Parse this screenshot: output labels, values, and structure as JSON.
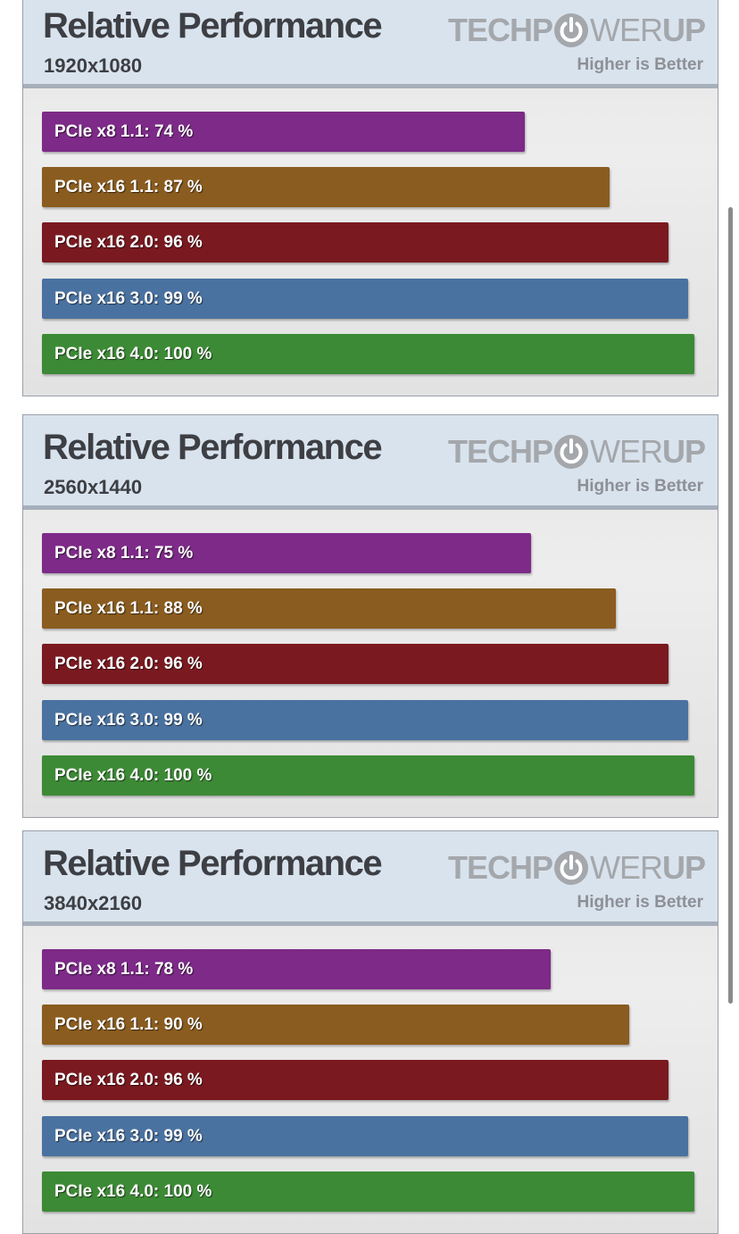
{
  "branding": {
    "logo_prefix": "TECHP",
    "logo_mid": "WER",
    "logo_suffix": "UP",
    "tagline": "Higher is Better"
  },
  "colors": {
    "pcie_x8_1_1": "#7d2a88",
    "pcie_x16_1_1": "#8a5c1f",
    "pcie_x16_2_0": "#7a1a20",
    "pcie_x16_3_0": "#4a72a0",
    "pcie_x16_4_0": "#3c8a35"
  },
  "chart_data": [
    {
      "type": "bar",
      "orientation": "horizontal",
      "title": "Relative Performance",
      "subtitle": "1920x1080",
      "unit": "%",
      "xlim": [
        0,
        100
      ],
      "categories": [
        "PCIe x8 1.1",
        "PCIe x16 1.1",
        "PCIe x16 2.0",
        "PCIe x16 3.0",
        "PCIe x16 4.0"
      ],
      "values": [
        74,
        87,
        96,
        99,
        100
      ],
      "labels": [
        "PCIe x8 1.1: 74 %",
        "PCIe x16 1.1: 87 %",
        "PCIe x16 2.0: 96 %",
        "PCIe x16 3.0: 99 %",
        "PCIe x16 4.0: 100 %"
      ]
    },
    {
      "type": "bar",
      "orientation": "horizontal",
      "title": "Relative Performance",
      "subtitle": "2560x1440",
      "unit": "%",
      "xlim": [
        0,
        100
      ],
      "categories": [
        "PCIe x8 1.1",
        "PCIe x16 1.1",
        "PCIe x16 2.0",
        "PCIe x16 3.0",
        "PCIe x16 4.0"
      ],
      "values": [
        75,
        88,
        96,
        99,
        100
      ],
      "labels": [
        "PCIe x8 1.1: 75 %",
        "PCIe x16 1.1: 88 %",
        "PCIe x16 2.0: 96 %",
        "PCIe x16 3.0: 99 %",
        "PCIe x16 4.0: 100 %"
      ]
    },
    {
      "type": "bar",
      "orientation": "horizontal",
      "title": "Relative Performance",
      "subtitle": "3840x2160",
      "unit": "%",
      "xlim": [
        0,
        100
      ],
      "categories": [
        "PCIe x8 1.1",
        "PCIe x16 1.1",
        "PCIe x16 2.0",
        "PCIe x16 3.0",
        "PCIe x16 4.0"
      ],
      "values": [
        78,
        90,
        96,
        99,
        100
      ],
      "labels": [
        "PCIe x8 1.1: 78 %",
        "PCIe x16 1.1: 90 %",
        "PCIe x16 2.0: 96 %",
        "PCIe x16 3.0: 99 %",
        "PCIe x16 4.0: 100 %"
      ]
    }
  ]
}
